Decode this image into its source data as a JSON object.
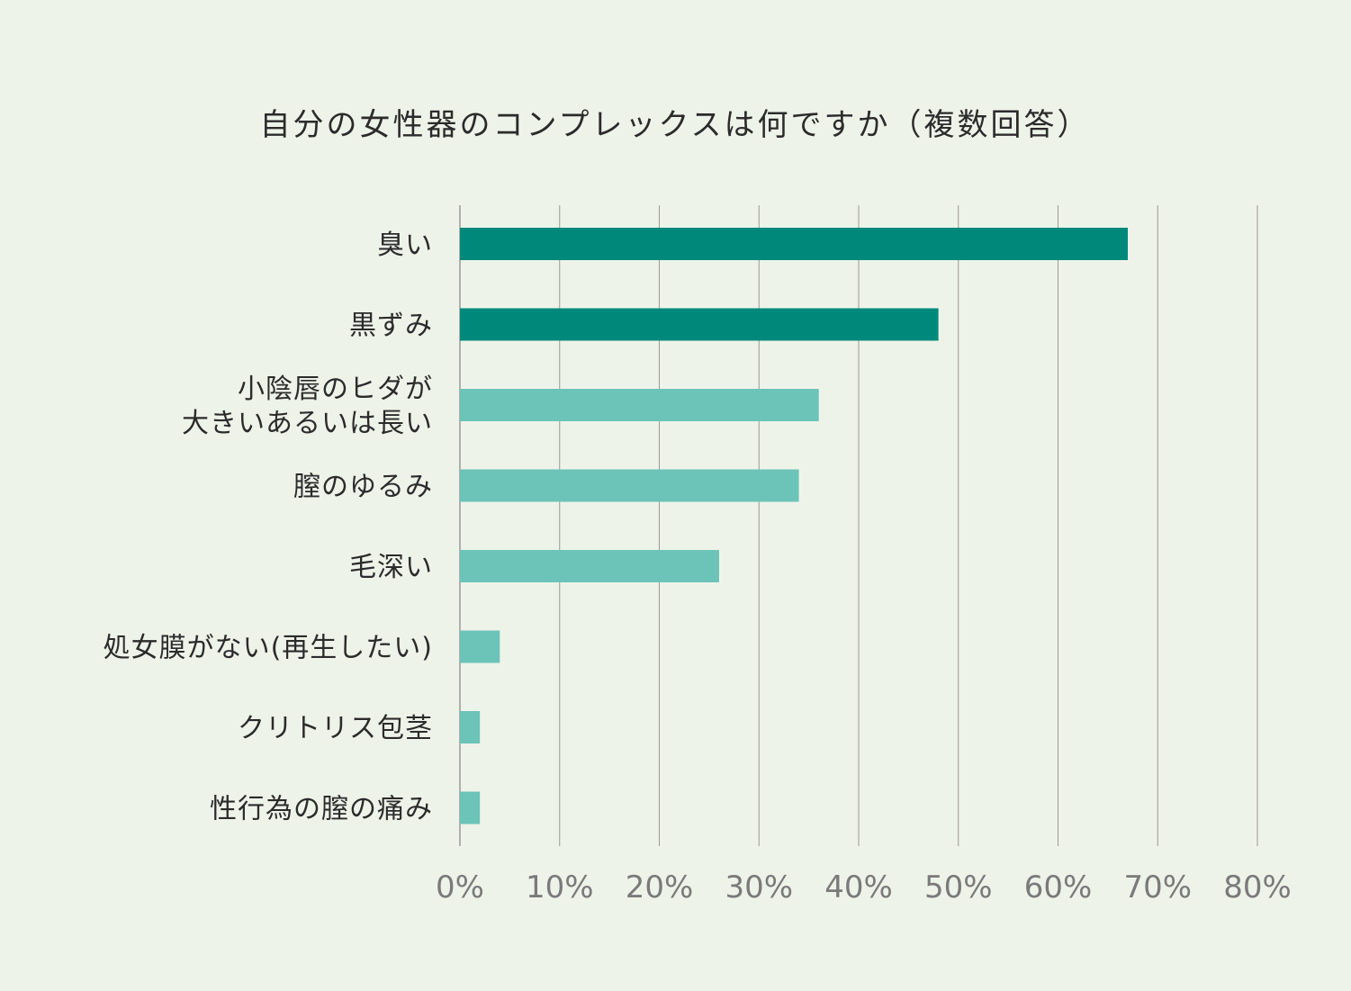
{
  "chart_data": {
    "type": "bar",
    "orientation": "horizontal",
    "title": "自分の女性器のコンプレックスは何ですか（複数回答）",
    "categories": [
      [
        "臭い"
      ],
      [
        "黒ずみ"
      ],
      [
        "小陰唇のヒダが",
        "大きいあるいは長い"
      ],
      [
        "膣のゆるみ"
      ],
      [
        "毛深い"
      ],
      [
        "処女膜がない(再生したい)"
      ],
      [
        "クリトリス包茎"
      ],
      [
        "性行為の膣の痛み"
      ]
    ],
    "values": [
      67,
      48,
      36,
      34,
      26,
      4,
      2,
      2
    ],
    "colors": [
      "#00897b",
      "#00897b",
      "#6cc3b8",
      "#6cc3b8",
      "#6cc3b8",
      "#6cc3b8",
      "#6cc3b8",
      "#6cc3b8"
    ],
    "xlim": [
      0,
      80
    ],
    "xticks": [
      0,
      10,
      20,
      30,
      40,
      50,
      60,
      70,
      80
    ],
    "tick_labels": [
      "0%",
      "10%",
      "20%",
      "30%",
      "40%",
      "50%",
      "60%",
      "70%",
      "80%"
    ],
    "grid": true,
    "xlabel": "",
    "ylabel": ""
  },
  "colors": {
    "background": "#eef3e9",
    "grid": "#9a9a9a",
    "text": "#2b2b2b",
    "tick_text": "#7a7a7a"
  }
}
